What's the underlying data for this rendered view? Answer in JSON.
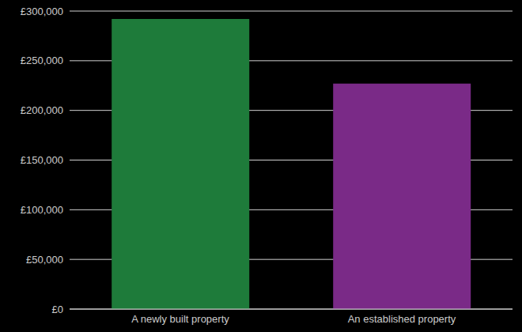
{
  "chart_data": {
    "type": "bar",
    "categories": [
      "A newly built property",
      "An established property"
    ],
    "values": [
      292000,
      227000
    ],
    "colors": [
      "#1e7b3a",
      "#7a2a87"
    ],
    "ylim": [
      0,
      300000
    ],
    "yticks": [
      {
        "value": 0,
        "label": "£0"
      },
      {
        "value": 50000,
        "label": "£50,000"
      },
      {
        "value": 100000,
        "label": "£100,000"
      },
      {
        "value": 150000,
        "label": "£150,000"
      },
      {
        "value": 200000,
        "label": "£200,000"
      },
      {
        "value": 250000,
        "label": "£250,000"
      },
      {
        "value": 300000,
        "label": "£300,000"
      }
    ],
    "grid": true
  }
}
